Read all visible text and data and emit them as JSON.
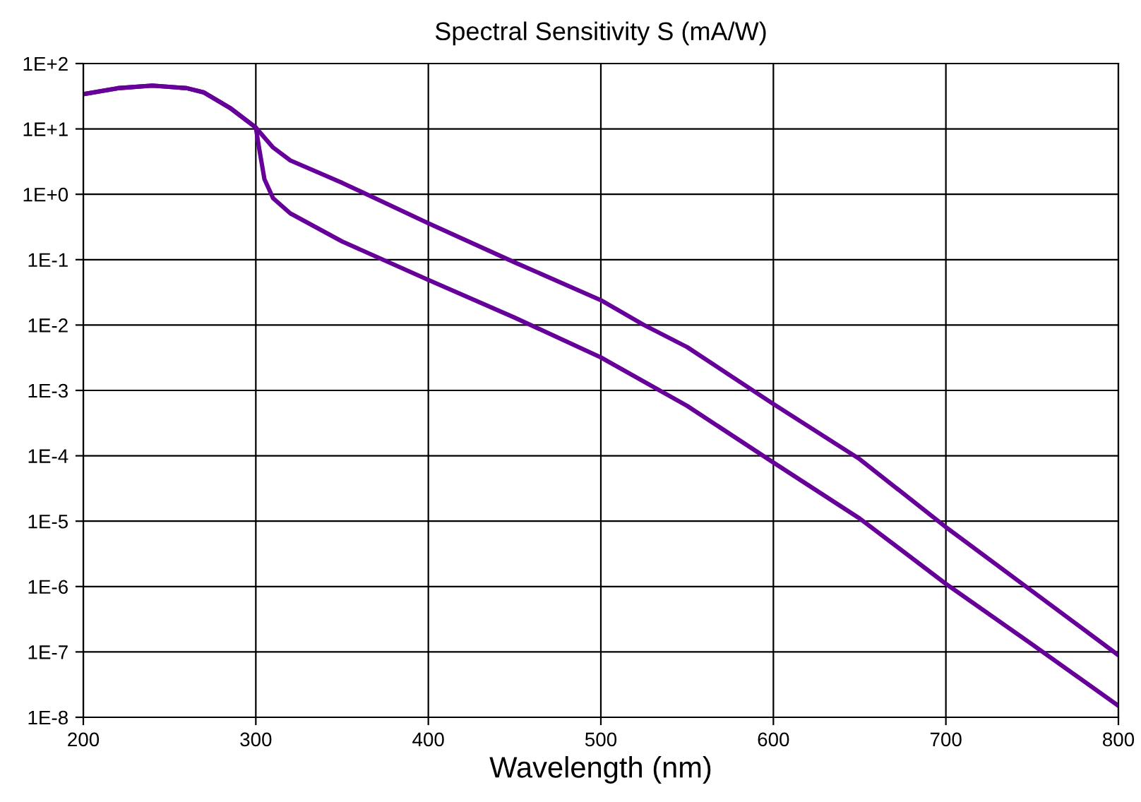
{
  "chart_data": {
    "type": "line",
    "title": "Spectral Sensitivity S (mA/W)",
    "xlabel": "Wavelength (nm)",
    "log": "y",
    "grid": true,
    "marker": "none",
    "line_style": "solid",
    "xlim": [
      200,
      800
    ],
    "xticks": [
      200,
      300,
      400,
      500,
      600,
      700,
      800
    ],
    "ylim": [
      1e-08,
      100
    ],
    "yticks": [
      {
        "value": 100,
        "label": "1E+2"
      },
      {
        "value": 10,
        "label": "1E+1"
      },
      {
        "value": 1,
        "label": "1E+0"
      },
      {
        "value": 0.1,
        "label": "1E-1"
      },
      {
        "value": 0.01,
        "label": "1E-2"
      },
      {
        "value": 0.001,
        "label": "1E-3"
      },
      {
        "value": 0.0001,
        "label": "1E-4"
      },
      {
        "value": 1e-05,
        "label": "1E-5"
      },
      {
        "value": 1e-06,
        "label": "1E-6"
      },
      {
        "value": 1e-07,
        "label": "1E-7"
      },
      {
        "value": 1e-08,
        "label": "1E-8"
      }
    ],
    "series": [
      {
        "color": "#660099",
        "x": [
          200,
          220,
          240,
          260,
          270,
          285,
          300,
          310,
          320,
          350,
          400,
          450,
          500,
          525,
          550,
          600,
          650,
          700,
          750,
          800
        ],
        "values": [
          34,
          42,
          46,
          42,
          36,
          21,
          10.5,
          5.2,
          3.3,
          1.5,
          0.36,
          0.091,
          0.024,
          0.01,
          0.0046,
          0.00062,
          8.9e-05,
          8.1e-06,
          8.5e-07,
          8.9e-08
        ]
      },
      {
        "color": "#660099",
        "x": [
          200,
          220,
          240,
          260,
          270,
          285,
          300,
          302,
          305,
          310,
          320,
          350,
          400,
          450,
          500,
          550,
          600,
          650,
          700,
          750,
          800
        ],
        "values": [
          34,
          42,
          46,
          42,
          36,
          21,
          10.5,
          4.9,
          1.7,
          0.87,
          0.51,
          0.19,
          0.049,
          0.013,
          0.0032,
          0.00058,
          7.9e-05,
          1.1e-05,
          1.1e-06,
          1.3e-07,
          1.5e-08
        ]
      }
    ]
  }
}
